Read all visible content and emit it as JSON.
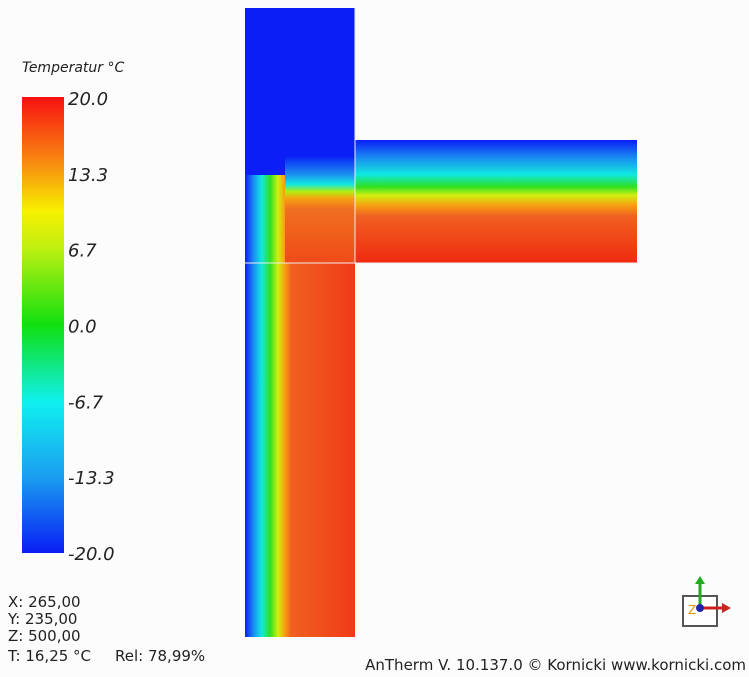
{
  "legend": {
    "title": "Temperatur °C",
    "ticks": [
      "20.0",
      "13.3",
      "6.7",
      "0.0",
      "-6.7",
      "-13.3",
      "-20.0"
    ]
  },
  "readout": {
    "x": "X: 265,00",
    "y": "Y: 235,00",
    "z": "Z: 500,00",
    "t": "T: 16,25 °C",
    "rel": "Rel: 78,99%"
  },
  "footer": "AnTherm V. 10.137.0 © Kornicki www.kornicki.com"
}
